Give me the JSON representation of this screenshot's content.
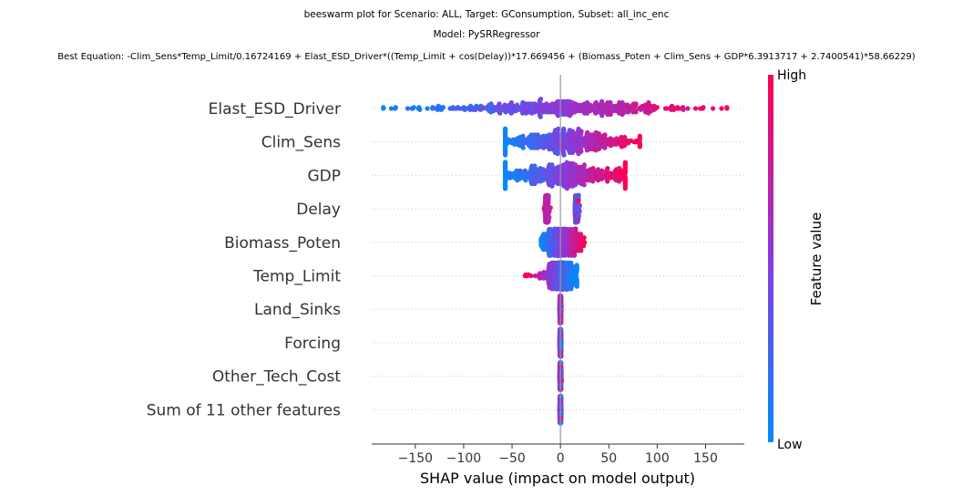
{
  "chart_data": {
    "type": "scatter",
    "subtype": "beeswarm",
    "title_lines": [
      "beeswarm plot for Scenario: ALL, Target: GConsumption, Subset: all_inc_enc",
      "Model: PySRRegressor",
      "Best Equation: -Clim_Sens*Temp_Limit/0.16724169 + Elast_ESD_Driver*((Temp_Limit + cos(Delay))*17.669456 + (Biomass_Poten + Clim_Sens + GDP*6.3913717 + 2.7400541)*58.66229)"
    ],
    "xlabel": "SHAP value (impact on model output)",
    "xlim": [
      -195,
      190
    ],
    "xticks": [
      -150,
      -100,
      -50,
      0,
      50,
      100,
      150
    ],
    "xtick_labels": [
      "−150",
      "−100",
      "−50",
      "0",
      "50",
      "100",
      "150"
    ],
    "grid": false,
    "colorbar": {
      "label": "Feature value",
      "high_label": "High",
      "low_label": "Low",
      "low_color": "#008bfb",
      "mid_color": "#8b39dd",
      "high_color": "#ff0052"
    },
    "features": [
      {
        "name": "Elast_ESD_Driver",
        "min": -183,
        "max": 172,
        "core": 60,
        "pattern": "linear"
      },
      {
        "name": "Clim_Sens",
        "min": -57,
        "max": 82,
        "core": 38,
        "pattern": "linear"
      },
      {
        "name": "GDP",
        "min": -57,
        "max": 67,
        "core": 38,
        "pattern": "linear"
      },
      {
        "name": "Delay",
        "min": -15,
        "max": 20,
        "core": 3,
        "pattern": "bimodal"
      },
      {
        "name": "Biomass_Poten",
        "min": -20,
        "max": 25,
        "core": 10,
        "pattern": "linear"
      },
      {
        "name": "Temp_Limit",
        "min": -37,
        "max": 17,
        "core": 8,
        "pattern": "reverse"
      },
      {
        "name": "Land_Sinks",
        "min": -1,
        "max": 1,
        "core": 0.4,
        "pattern": "mixed"
      },
      {
        "name": "Forcing",
        "min": -1,
        "max": 1,
        "core": 0.4,
        "pattern": "mixed"
      },
      {
        "name": "Other_Tech_Cost",
        "min": -1,
        "max": 1,
        "core": 0.4,
        "pattern": "mixed"
      },
      {
        "name": "Sum of 11 other features",
        "min": -1,
        "max": 1,
        "core": 0.4,
        "pattern": "mixed"
      }
    ]
  }
}
